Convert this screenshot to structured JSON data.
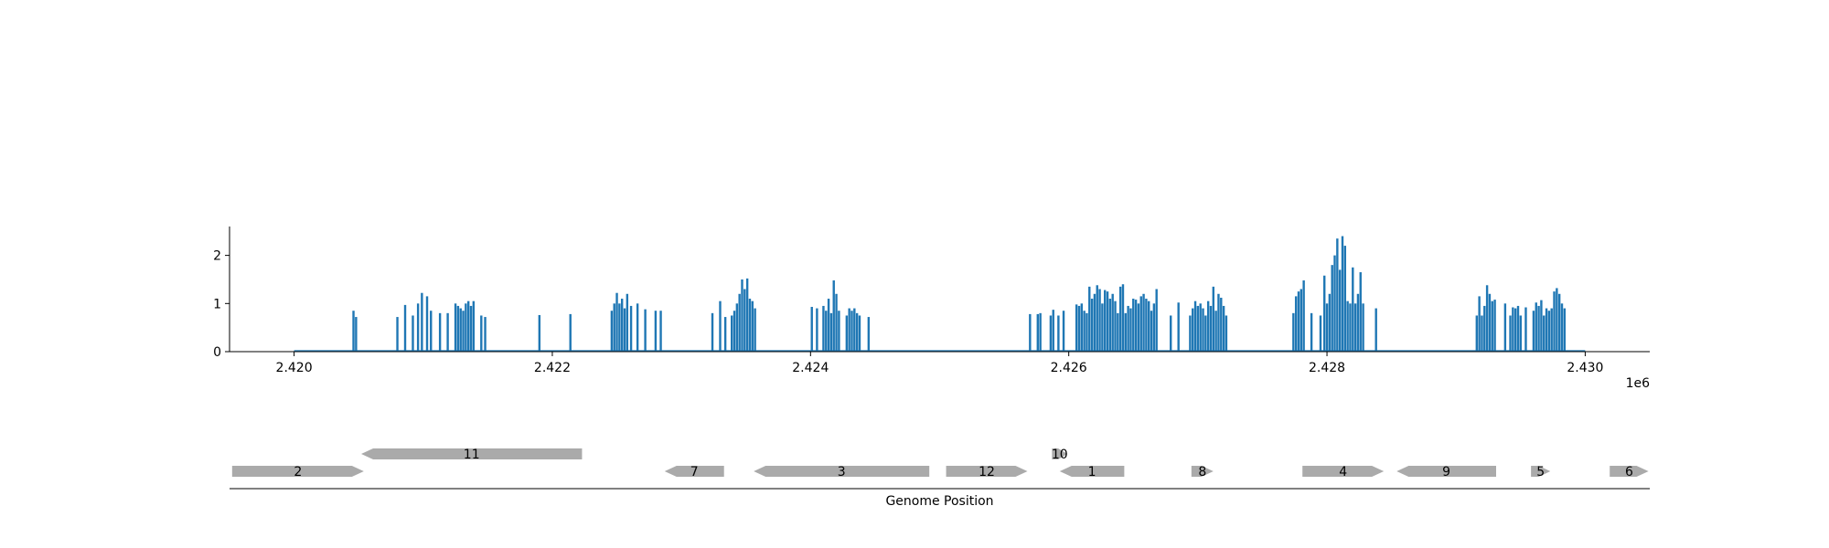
{
  "chart_data": [
    {
      "type": "bar",
      "title": "",
      "xlabel": "",
      "ylabel": "",
      "xlim": [
        2419500,
        2430500
      ],
      "ylim": [
        0,
        2.6
      ],
      "x_ticks": [
        2420000,
        2422000,
        2424000,
        2426000,
        2428000,
        2430000
      ],
      "x_tick_labels": [
        "2.420",
        "2.422",
        "2.424",
        "2.426",
        "2.428",
        "2.430"
      ],
      "x_offset_label": "1e6",
      "y_ticks": [
        0,
        1,
        2
      ],
      "y_tick_labels": [
        "0",
        "1",
        "2"
      ],
      "baseline_range": [
        2420000,
        2430000
      ],
      "bar_color": "#1f77b4",
      "clusters": [
        {
          "peaks": [
            [
              2420460,
              0.85
            ],
            [
              2420480,
              0.72
            ]
          ]
        },
        {
          "peaks": [
            [
              2420800,
              0.72
            ],
            [
              2420860,
              0.97
            ],
            [
              2420920,
              0.75
            ],
            [
              2420960,
              1.0
            ],
            [
              2420990,
              1.22
            ],
            [
              2421030,
              1.15
            ],
            [
              2421060,
              0.85
            ],
            [
              2421130,
              0.8
            ],
            [
              2421190,
              0.8
            ]
          ]
        },
        {
          "peaks": [
            [
              2421250,
              1.0
            ],
            [
              2421270,
              0.95
            ],
            [
              2421290,
              0.9
            ],
            [
              2421310,
              0.85
            ],
            [
              2421330,
              1.0
            ],
            [
              2421350,
              1.05
            ],
            [
              2421370,
              0.95
            ],
            [
              2421390,
              1.05
            ]
          ]
        },
        {
          "peaks": [
            [
              2421450,
              0.75
            ],
            [
              2421480,
              0.72
            ]
          ]
        },
        {
          "peaks": [
            [
              2421900,
              0.76
            ]
          ]
        },
        {
          "peaks": [
            [
              2422140,
              0.78
            ]
          ]
        },
        {
          "peaks": [
            [
              2422460,
              0.85
            ],
            [
              2422480,
              1.0
            ],
            [
              2422500,
              1.22
            ],
            [
              2422520,
              1.0
            ],
            [
              2422540,
              1.1
            ],
            [
              2422560,
              0.9
            ],
            [
              2422580,
              1.2
            ],
            [
              2422610,
              0.95
            ],
            [
              2422660,
              1.0
            ],
            [
              2422720,
              0.88
            ],
            [
              2422800,
              0.85
            ],
            [
              2422840,
              0.85
            ]
          ]
        },
        {
          "peaks": [
            [
              2423240,
              0.8
            ],
            [
              2423300,
              1.05
            ],
            [
              2423340,
              0.72
            ],
            [
              2423390,
              0.75
            ],
            [
              2423410,
              0.85
            ],
            [
              2423430,
              1.0
            ],
            [
              2423450,
              1.2
            ],
            [
              2423470,
              1.5
            ],
            [
              2423490,
              1.3
            ],
            [
              2423510,
              1.52
            ],
            [
              2423530,
              1.1
            ],
            [
              2423550,
              1.05
            ],
            [
              2423570,
              0.9
            ]
          ]
        },
        {
          "peaks": [
            [
              2424010,
              0.93
            ],
            [
              2424050,
              0.9
            ],
            [
              2424100,
              0.95
            ],
            [
              2424120,
              0.85
            ],
            [
              2424140,
              1.1
            ],
            [
              2424160,
              0.8
            ],
            [
              2424180,
              1.48
            ],
            [
              2424200,
              1.2
            ],
            [
              2424220,
              0.85
            ],
            [
              2424280,
              0.75
            ],
            [
              2424300,
              0.9
            ],
            [
              2424320,
              0.85
            ],
            [
              2424340,
              0.9
            ],
            [
              2424360,
              0.8
            ],
            [
              2424380,
              0.75
            ],
            [
              2424450,
              0.72
            ]
          ]
        },
        {
          "peaks": [
            [
              2425700,
              0.78
            ],
            [
              2425760,
              0.78
            ],
            [
              2425780,
              0.8
            ],
            [
              2425860,
              0.75
            ],
            [
              2425880,
              0.87
            ],
            [
              2425920,
              0.75
            ],
            [
              2425960,
              0.85
            ]
          ]
        },
        {
          "peaks": [
            [
              2426060,
              0.98
            ],
            [
              2426080,
              0.95
            ],
            [
              2426100,
              1.0
            ],
            [
              2426120,
              0.85
            ],
            [
              2426140,
              0.8
            ],
            [
              2426160,
              1.35
            ],
            [
              2426180,
              1.1
            ],
            [
              2426200,
              1.2
            ],
            [
              2426220,
              1.38
            ],
            [
              2426240,
              1.3
            ],
            [
              2426260,
              1.0
            ],
            [
              2426280,
              1.28
            ],
            [
              2426300,
              1.25
            ],
            [
              2426320,
              1.1
            ],
            [
              2426340,
              1.2
            ],
            [
              2426360,
              1.05
            ],
            [
              2426380,
              0.8
            ],
            [
              2426400,
              1.35
            ],
            [
              2426420,
              1.4
            ],
            [
              2426440,
              0.8
            ],
            [
              2426460,
              0.95
            ],
            [
              2426480,
              0.9
            ],
            [
              2426500,
              1.1
            ],
            [
              2426520,
              1.08
            ],
            [
              2426540,
              1.0
            ],
            [
              2426560,
              1.15
            ],
            [
              2426580,
              1.2
            ],
            [
              2426600,
              1.1
            ],
            [
              2426620,
              1.05
            ],
            [
              2426640,
              0.85
            ],
            [
              2426660,
              1.0
            ],
            [
              2426680,
              1.3
            ]
          ]
        },
        {
          "peaks": [
            [
              2426790,
              0.75
            ],
            [
              2426850,
              1.02
            ]
          ]
        },
        {
          "peaks": [
            [
              2426940,
              0.75
            ],
            [
              2426960,
              0.9
            ],
            [
              2426980,
              1.05
            ],
            [
              2427000,
              0.95
            ],
            [
              2427020,
              1.0
            ],
            [
              2427040,
              0.9
            ],
            [
              2427060,
              0.75
            ],
            [
              2427080,
              1.05
            ],
            [
              2427100,
              0.95
            ],
            [
              2427120,
              1.35
            ],
            [
              2427140,
              0.85
            ],
            [
              2427160,
              1.2
            ],
            [
              2427180,
              1.12
            ],
            [
              2427200,
              0.95
            ],
            [
              2427220,
              0.75
            ]
          ]
        },
        {
          "peaks": [
            [
              2427740,
              0.8
            ],
            [
              2427760,
              1.15
            ],
            [
              2427780,
              1.25
            ],
            [
              2427800,
              1.3
            ],
            [
              2427820,
              1.48
            ],
            [
              2427880,
              0.8
            ],
            [
              2427950,
              0.75
            ]
          ]
        },
        {
          "peaks": [
            [
              2427980,
              1.58
            ],
            [
              2428000,
              1.0
            ],
            [
              2428020,
              1.2
            ],
            [
              2428040,
              1.8
            ],
            [
              2428060,
              2.0
            ],
            [
              2428080,
              2.35
            ],
            [
              2428100,
              1.7
            ],
            [
              2428120,
              2.4
            ],
            [
              2428140,
              2.2
            ],
            [
              2428160,
              1.05
            ],
            [
              2428180,
              1.0
            ],
            [
              2428200,
              1.75
            ],
            [
              2428220,
              1.0
            ],
            [
              2428240,
              1.2
            ],
            [
              2428260,
              1.65
            ],
            [
              2428280,
              1.0
            ]
          ]
        },
        {
          "peaks": [
            [
              2428380,
              0.9
            ]
          ]
        },
        {
          "peaks": [
            [
              2429160,
              0.75
            ],
            [
              2429180,
              1.15
            ],
            [
              2429200,
              0.75
            ],
            [
              2429220,
              0.95
            ],
            [
              2429240,
              1.38
            ],
            [
              2429260,
              1.2
            ],
            [
              2429280,
              1.05
            ],
            [
              2429300,
              1.08
            ]
          ]
        },
        {
          "peaks": [
            [
              2429380,
              1.0
            ],
            [
              2429420,
              0.75
            ],
            [
              2429440,
              0.92
            ],
            [
              2429460,
              0.9
            ],
            [
              2429480,
              0.95
            ],
            [
              2429500,
              0.75
            ],
            [
              2429540,
              0.92
            ],
            [
              2429600,
              0.85
            ],
            [
              2429620,
              1.02
            ],
            [
              2429640,
              0.95
            ],
            [
              2429660,
              1.07
            ],
            [
              2429680,
              0.75
            ],
            [
              2429700,
              0.9
            ],
            [
              2429720,
              0.85
            ],
            [
              2429740,
              0.9
            ],
            [
              2429760,
              1.25
            ],
            [
              2429780,
              1.32
            ],
            [
              2429800,
              1.2
            ],
            [
              2429820,
              1.0
            ],
            [
              2429840,
              0.9
            ]
          ]
        }
      ]
    },
    {
      "type": "gene-track",
      "xlabel": "Genome Position",
      "feature_color": "#aaaaaa",
      "genes": [
        {
          "label": "2",
          "start": 2419520,
          "end": 2420540,
          "strand": "+",
          "row": 0
        },
        {
          "label": "11",
          "start": 2420520,
          "end": 2422230,
          "strand": "-",
          "row": 1
        },
        {
          "label": "7",
          "start": 2422870,
          "end": 2423330,
          "strand": "-",
          "row": 0
        },
        {
          "label": "3",
          "start": 2423560,
          "end": 2424920,
          "strand": "-",
          "row": 0
        },
        {
          "label": "12",
          "start": 2425050,
          "end": 2425680,
          "strand": "+",
          "row": 0
        },
        {
          "label": "10",
          "start": 2425870,
          "end": 2425990,
          "strand": "+",
          "row": 1
        },
        {
          "label": "1",
          "start": 2425930,
          "end": 2426430,
          "strand": "-",
          "row": 0
        },
        {
          "label": "8",
          "start": 2426950,
          "end": 2427120,
          "strand": "+",
          "row": 0
        },
        {
          "label": "4",
          "start": 2427810,
          "end": 2428440,
          "strand": "+",
          "row": 0
        },
        {
          "label": "9",
          "start": 2428540,
          "end": 2429310,
          "strand": "-",
          "row": 0
        },
        {
          "label": "5",
          "start": 2429580,
          "end": 2429730,
          "strand": "+",
          "row": 0
        },
        {
          "label": "6",
          "start": 2430190,
          "end": 2430490,
          "strand": "+",
          "row": 0
        }
      ]
    }
  ]
}
